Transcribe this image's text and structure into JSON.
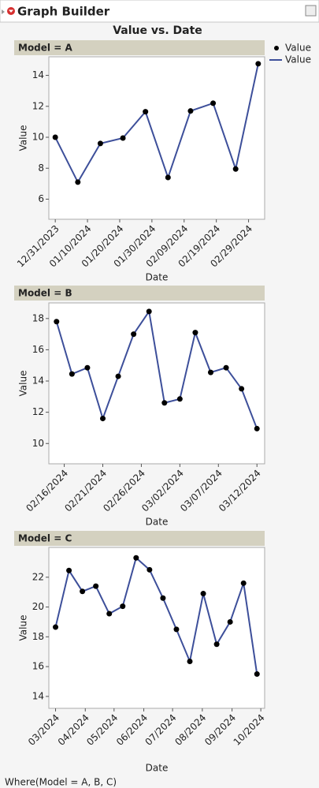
{
  "window_title": "Graph Builder",
  "footer": "Where(Model = A, B, C)",
  "chart_data": [
    {
      "type": "line",
      "title": "Value vs. Date",
      "panel_label": "Model = A",
      "xlabel": "Date",
      "ylabel": "Value",
      "legend": [
        {
          "label": "Value",
          "marker": "point"
        },
        {
          "label": "Value",
          "marker": "line"
        }
      ],
      "x": [
        "2023-12-31",
        "2024-01-07",
        "2024-01-14",
        "2024-01-21",
        "2024-01-28",
        "2024-02-04",
        "2024-02-11",
        "2024-02-18",
        "2024-02-25",
        "2024-03-03"
      ],
      "series": [
        {
          "color": "#3d4f9a",
          "marker_color": "#000000",
          "values": [
            10.0,
            7.1,
            9.6,
            9.95,
            11.65,
            7.4,
            11.7,
            12.2,
            7.95,
            14.75
          ]
        }
      ],
      "xlim": [
        "2023-12-29",
        "2024-03-05"
      ],
      "xticks": [
        {
          "value": "2023-12-31",
          "label": "12/31/2023"
        },
        {
          "value": "2024-01-10",
          "label": "01/10/2024"
        },
        {
          "value": "2024-01-20",
          "label": "01/20/2024"
        },
        {
          "value": "2024-01-30",
          "label": "01/30/2024"
        },
        {
          "value": "2024-02-09",
          "label": "02/09/2024"
        },
        {
          "value": "2024-02-19",
          "label": "02/19/2024"
        },
        {
          "value": "2024-02-29",
          "label": "02/29/2024"
        }
      ],
      "ylim": [
        4.7,
        15.2
      ],
      "yticks": [
        6,
        8,
        10,
        12,
        14
      ]
    },
    {
      "type": "line",
      "panel_label": "Model = B",
      "xlabel": "Date",
      "ylabel": "Value",
      "x": [
        "2024-02-15",
        "2024-02-17",
        "2024-02-19",
        "2024-02-21",
        "2024-02-23",
        "2024-02-25",
        "2024-02-27",
        "2024-02-29",
        "2024-03-02",
        "2024-03-04",
        "2024-03-06",
        "2024-03-08",
        "2024-03-10",
        "2024-03-12"
      ],
      "series": [
        {
          "color": "#3d4f9a",
          "marker_color": "#000000",
          "values": [
            17.8,
            14.45,
            14.85,
            11.6,
            14.3,
            17.0,
            18.45,
            12.6,
            12.85,
            17.1,
            14.55,
            14.85,
            13.5,
            10.95
          ]
        }
      ],
      "xlim": [
        "2024-02-14",
        "2024-03-13"
      ],
      "xticks": [
        {
          "value": "2024-02-16",
          "label": "02/16/2024"
        },
        {
          "value": "2024-02-21",
          "label": "02/21/2024"
        },
        {
          "value": "2024-02-26",
          "label": "02/26/2024"
        },
        {
          "value": "2024-03-02",
          "label": "03/02/2024"
        },
        {
          "value": "2024-03-07",
          "label": "03/07/2024"
        },
        {
          "value": "2024-03-12",
          "label": "03/12/2024"
        }
      ],
      "ylim": [
        8.7,
        19.0
      ],
      "yticks": [
        10,
        12,
        14,
        16,
        18
      ]
    },
    {
      "type": "line",
      "panel_label": "Model = C",
      "xlabel": "Date",
      "ylabel": "Value",
      "x": [
        "2024-03-01",
        "2024-03-15",
        "2024-03-29",
        "2024-04-12",
        "2024-04-26",
        "2024-05-10",
        "2024-05-24",
        "2024-06-07",
        "2024-06-21",
        "2024-07-05",
        "2024-07-19",
        "2024-08-02",
        "2024-08-16",
        "2024-08-30",
        "2024-09-13",
        "2024-09-27"
      ],
      "series": [
        {
          "color": "#3d4f9a",
          "marker_color": "#000000",
          "values": [
            18.65,
            22.45,
            21.05,
            21.4,
            19.55,
            20.05,
            23.3,
            22.5,
            20.6,
            18.5,
            16.35,
            20.9,
            17.5,
            19.0,
            21.6,
            15.5
          ]
        }
      ],
      "xlim": [
        "2024-02-23",
        "2024-10-05"
      ],
      "xticks": [
        {
          "value": "2024-03-01",
          "label": "03/2024"
        },
        {
          "value": "2024-04-01",
          "label": "04/2024"
        },
        {
          "value": "2024-05-01",
          "label": "05/2024"
        },
        {
          "value": "2024-06-01",
          "label": "06/2024"
        },
        {
          "value": "2024-07-01",
          "label": "07/2024"
        },
        {
          "value": "2024-08-01",
          "label": "08/2024"
        },
        {
          "value": "2024-09-01",
          "label": "09/2024"
        },
        {
          "value": "2024-10-01",
          "label": "10/2024"
        }
      ],
      "ylim": [
        13.2,
        24.0
      ],
      "yticks": [
        14,
        16,
        18,
        20,
        22
      ]
    }
  ]
}
